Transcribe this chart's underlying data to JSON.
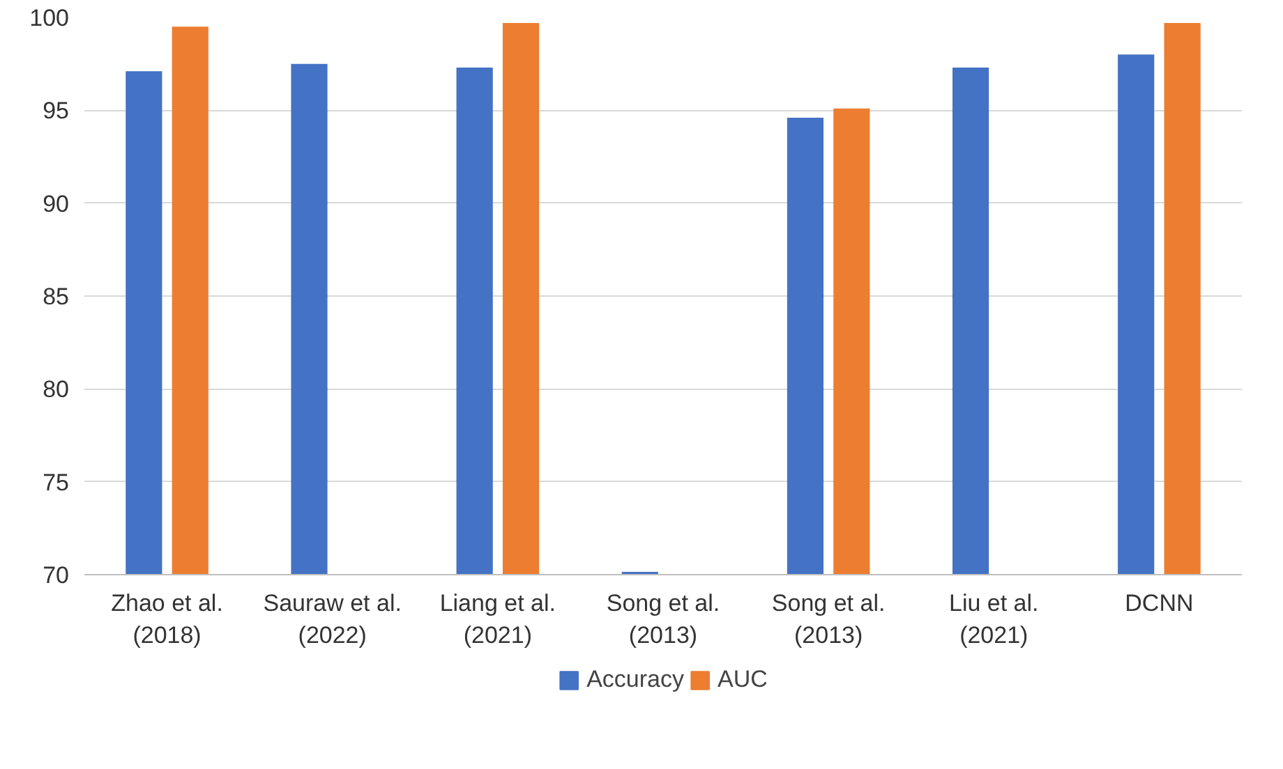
{
  "chart_data": {
    "type": "bar",
    "categories": [
      "Zhao et al.\n(2018)",
      "Sauraw et al.\n(2022)",
      "Liang et al.\n(2021)",
      "Song et al.\n(2013)",
      "Song et al.\n(2013)",
      "Liu et al.\n(2021)",
      "DCNN"
    ],
    "series": [
      {
        "name": "Accuracy",
        "color": "#4472c4",
        "values": [
          97.1,
          97.5,
          97.3,
          70.15,
          94.6,
          97.3,
          98.0
        ]
      },
      {
        "name": "AUC",
        "color": "#ed7d31",
        "values": [
          99.5,
          null,
          99.7,
          null,
          95.1,
          null,
          99.7
        ]
      }
    ],
    "ylim": [
      70,
      100
    ],
    "yticks": [
      70,
      75,
      80,
      85,
      90,
      95,
      100
    ],
    "grid": "y",
    "legend": "bottom"
  }
}
